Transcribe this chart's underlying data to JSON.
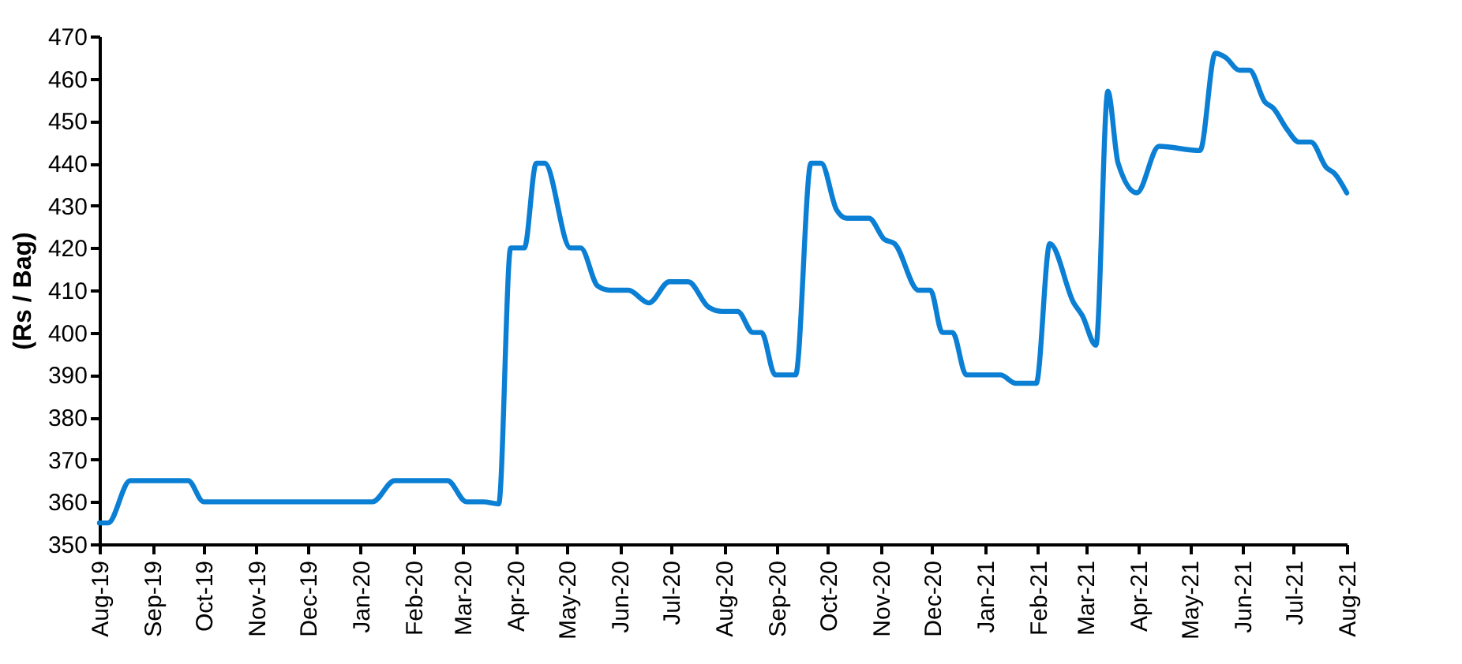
{
  "chart_data": {
    "type": "line",
    "ylabel": "(Rs / Bag)",
    "x": [
      "2019-08-01",
      "2019-08-06",
      "2019-08-19",
      "2019-09-19",
      "2019-09-22",
      "2019-10-01",
      "2020-01-08",
      "2020-01-21",
      "2020-02-21",
      "2020-03-03",
      "2020-03-13",
      "2020-03-22",
      "2020-03-29",
      "2020-04-06",
      "2020-04-13",
      "2020-04-18",
      "2020-05-03",
      "2020-05-09",
      "2020-05-19",
      "2020-05-26",
      "2020-06-06",
      "2020-06-18",
      "2020-06-30",
      "2020-07-11",
      "2020-07-23",
      "2020-07-31",
      "2020-08-09",
      "2020-08-18",
      "2020-08-23",
      "2020-08-31",
      "2020-09-12",
      "2020-09-21",
      "2020-09-27",
      "2020-10-06",
      "2020-10-12",
      "2020-10-25",
      "2020-11-03",
      "2020-11-09",
      "2020-11-23",
      "2020-11-30",
      "2020-12-07",
      "2020-12-13",
      "2020-12-21",
      "2021-01-10",
      "2021-01-19",
      "2021-01-31",
      "2021-02-08",
      "2021-02-22",
      "2021-02-27",
      "2021-03-07",
      "2021-03-14",
      "2021-03-20",
      "2021-03-31",
      "2021-04-13",
      "2021-05-07",
      "2021-05-16",
      "2021-05-22",
      "2021-05-30",
      "2021-06-05",
      "2021-06-14",
      "2021-06-19",
      "2021-06-27",
      "2021-07-04",
      "2021-07-11",
      "2021-07-20",
      "2021-07-25",
      "2021-08-01"
    ],
    "series": [
      {
        "color": "#0a7fd4",
        "values": [
          355,
          355,
          365,
          365,
          365,
          360,
          360,
          365,
          365,
          360,
          360,
          359.5,
          420,
          420,
          440,
          440,
          420,
          420,
          411,
          410,
          410,
          407,
          412,
          412,
          406,
          405,
          405,
          400,
          400,
          390,
          390,
          440,
          440,
          429,
          427,
          427,
          422,
          421,
          410,
          410,
          400,
          400,
          390,
          390,
          388,
          388,
          421,
          407,
          404,
          397,
          457,
          440,
          433,
          444,
          443,
          466,
          465,
          462,
          462,
          454.5,
          453,
          448,
          445,
          445,
          439,
          437.5,
          433
        ]
      }
    ],
    "xlim": [
      "2019-08-01",
      "2021-08-01"
    ],
    "xticks": [
      {
        "value": "2019-08-01",
        "label": "Aug-19"
      },
      {
        "value": "2019-09-01",
        "label": "Sep-19"
      },
      {
        "value": "2019-10-01",
        "label": "Oct-19"
      },
      {
        "value": "2019-11-01",
        "label": "Nov-19"
      },
      {
        "value": "2019-12-01",
        "label": "Dec-19"
      },
      {
        "value": "2020-01-01",
        "label": "Jan-20"
      },
      {
        "value": "2020-02-01",
        "label": "Feb-20"
      },
      {
        "value": "2020-03-01",
        "label": "Mar-20"
      },
      {
        "value": "2020-04-01",
        "label": "Apr-20"
      },
      {
        "value": "2020-05-01",
        "label": "May-20"
      },
      {
        "value": "2020-06-01",
        "label": "Jun-20"
      },
      {
        "value": "2020-07-01",
        "label": "Jul-20"
      },
      {
        "value": "2020-08-01",
        "label": "Aug-20"
      },
      {
        "value": "2020-09-01",
        "label": "Sep-20"
      },
      {
        "value": "2020-10-01",
        "label": "Oct-20"
      },
      {
        "value": "2020-11-01",
        "label": "Nov-20"
      },
      {
        "value": "2020-12-01",
        "label": "Dec-20"
      },
      {
        "value": "2021-01-01",
        "label": "Jan-21"
      },
      {
        "value": "2021-02-01",
        "label": "Feb-21"
      },
      {
        "value": "2021-03-01",
        "label": "Mar-21"
      },
      {
        "value": "2021-04-01",
        "label": "Apr-21"
      },
      {
        "value": "2021-05-01",
        "label": "May-21"
      },
      {
        "value": "2021-06-01",
        "label": "Jun-21"
      },
      {
        "value": "2021-07-01",
        "label": "Jul-21"
      },
      {
        "value": "2021-08-01",
        "label": "Aug-21"
      }
    ],
    "ylim": [
      350,
      470
    ],
    "yticks": [
      350,
      360,
      370,
      380,
      390,
      400,
      410,
      420,
      430,
      440,
      450,
      460,
      470
    ],
    "grid": false,
    "marker": "none",
    "line_style": "solid"
  }
}
